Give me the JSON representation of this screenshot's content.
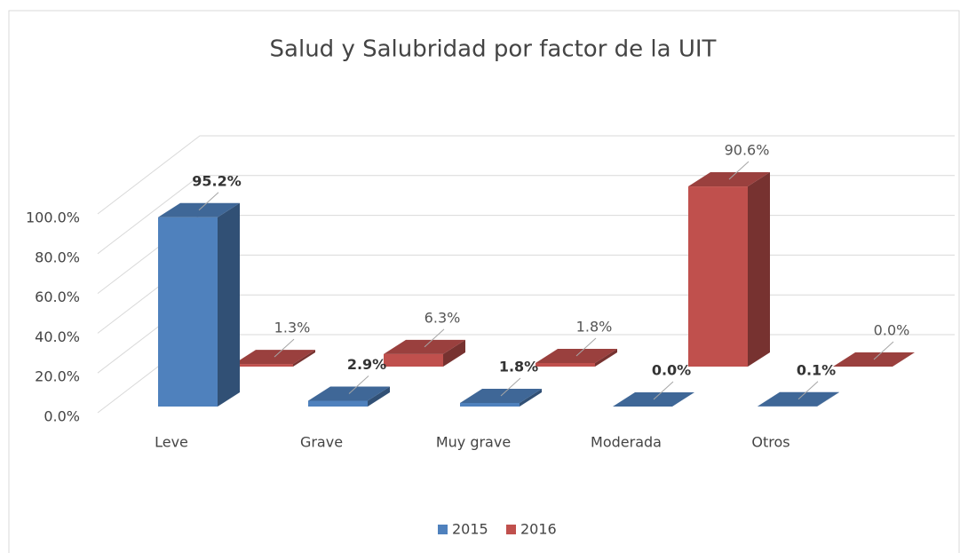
{
  "chart_data": {
    "type": "bar3d",
    "title": "Salud y Salubridad por factor de la UIT",
    "categories": [
      "Leve",
      "Grave",
      "Muy grave",
      "Moderada",
      "Otros"
    ],
    "series": [
      {
        "name": "2015",
        "color": "#4f81bd",
        "values": [
          95.2,
          2.9,
          1.8,
          0.0,
          0.1
        ],
        "value_labels": [
          "95.2%",
          "2.9%",
          "1.8%",
          "0.0%",
          "0.1%"
        ]
      },
      {
        "name": "2016",
        "color": "#c0504d",
        "values": [
          1.3,
          6.3,
          1.8,
          90.6,
          0.0
        ],
        "value_labels": [
          "1.3%",
          "6.3%",
          "1.8%",
          "90.6%",
          "0.0%"
        ]
      }
    ],
    "ylim": [
      0,
      100
    ],
    "yticks": [
      {
        "value": 0,
        "label": "0.0%"
      },
      {
        "value": 20,
        "label": "20.0%"
      },
      {
        "value": 40,
        "label": "40.0%"
      },
      {
        "value": 60,
        "label": "60.0%"
      },
      {
        "value": 80,
        "label": "80.0%"
      },
      {
        "value": 100,
        "label": "100.0%"
      }
    ],
    "grid": true,
    "legend": "bottom"
  }
}
